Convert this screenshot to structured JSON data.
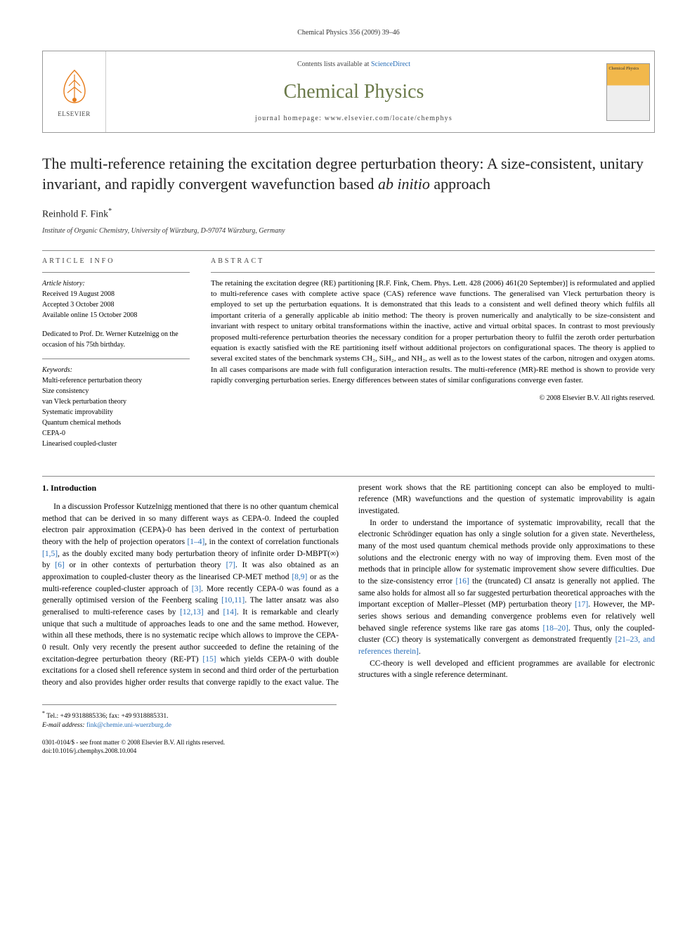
{
  "running_head": "Chemical Physics 356 (2009) 39–46",
  "masthead": {
    "contents_prefix": "Contents lists available at ",
    "contents_link": "ScienceDirect",
    "journal_name": "Chemical Physics",
    "homepage_prefix": "journal homepage: ",
    "homepage_url": "www.elsevier.com/locate/chemphys",
    "publisher_name": "ELSEVIER",
    "cover_text": "Chemical Physics"
  },
  "title_html": "The multi-reference retaining the excitation degree perturbation theory: A size-consistent, unitary invariant, and rapidly convergent wavefunction based <em>ab initio</em> approach",
  "author": "Reinhold F. Fink",
  "author_note_marker": "*",
  "affiliation": "Institute of Organic Chemistry, University of Würzburg, D-97074 Würzburg, Germany",
  "article_info": {
    "label": "ARTICLE INFO",
    "history_label": "Article history:",
    "received": "Received 19 August 2008",
    "accepted": "Accepted 3 October 2008",
    "online": "Available online 15 October 2008",
    "dedication": "Dedicated to Prof. Dr. Werner Kutzelnigg on the occasion of his 75th birthday.",
    "keywords_label": "Keywords:",
    "keywords": [
      "Multi-reference perturbation theory",
      "Size consistency",
      "van Vleck perturbation theory",
      "Systematic improvability",
      "Quantum chemical methods",
      "CEPA-0",
      "Linearised coupled-cluster"
    ]
  },
  "abstract": {
    "label": "ABSTRACT",
    "text": "The retaining the excitation degree (RE) partitioning [R.F. Fink, Chem. Phys. Lett. 428 (2006) 461(20 September)] is reformulated and applied to multi-reference cases with complete active space (CAS) reference wave functions. The generalised van Vleck perturbation theory is employed to set up the perturbation equations. It is demonstrated that this leads to a consistent and well defined theory which fulfils all important criteria of a generally applicable ab initio method: The theory is proven numerically and analytically to be size-consistent and invariant with respect to unitary orbital transformations within the inactive, active and virtual orbital spaces. In contrast to most previously proposed multi-reference perturbation theories the necessary condition for a proper perturbation theory to fulfil the zeroth order perturbation equation is exactly satisfied with the RE partitioning itself without additional projectors on configurational spaces. The theory is applied to several excited states of the benchmark systems CH₂, SiH₂, and NH₂, as well as to the lowest states of the carbon, nitrogen and oxygen atoms. In all cases comparisons are made with full configuration interaction results. The multi-reference (MR)-RE method is shown to provide very rapidly converging perturbation series. Energy differences between states of similar configurations converge even faster.",
    "copyright": "© 2008 Elsevier B.V. All rights reserved."
  },
  "section1": {
    "heading": "1. Introduction",
    "p1_html": "In a discussion Professor Kutzelnigg mentioned that there is no other quantum chemical method that can be derived in so many different ways as CEPA-0. Indeed the coupled electron pair approximation (CEPA)-0 has been derived in the context of perturbation theory with the help of projection operators <span class=\"ref\">[1–4]</span>, in the context of correlation functionals <span class=\"ref\">[1,5]</span>, as the doubly excited many body perturbation theory of infinite order D-MBPT(∞) by <span class=\"ref\">[6]</span> or in other contexts of perturbation theory <span class=\"ref\">[7]</span>. It was also obtained as an approximation to coupled-cluster theory as the linearised CP-MET method <span class=\"ref\">[8,9]</span> or as the multi-reference coupled-cluster approach of <span class=\"ref\">[3]</span>. More recently CEPA-0 was found as a generally optimised version of the Feenberg scaling <span class=\"ref\">[10,11]</span>. The latter ansatz was also generalised to multi-reference cases by <span class=\"ref\">[12,13]</span> and <span class=\"ref\">[14]</span>. It is remarkable and clearly unique that such a multitude of approaches leads to one and the same method. However, within all these methods, there is no systematic recipe which allows to improve the CEPA-0 result. Only very recently the present author succeeded to define the retaining of the excitation-degree perturbation theory (RE-PT) <span class=\"ref\">[15]</span> which yields CEPA-0 with double excitations for a closed shell reference system in second and third order of the perturbation theory and also provides higher order results that converge rapidly to the exact value. The present work shows that the RE partitioning concept can also be employed to multi-reference (MR) wavefunctions and the question of systematic improvability is again investigated.",
    "p2_html": "In order to understand the importance of systematic improvability, recall that the electronic Schrödinger equation has only a single solution for a given state. Nevertheless, many of the most used quantum chemical methods provide only approximations to these solutions and the electronic energy with no way of improving them. Even most of the methods that in principle allow for systematic improvement show severe difficulties. Due to the size-consistency error <span class=\"ref\">[16]</span> the (truncated) CI ansatz is generally not applied. The same also holds for almost all so far suggested perturbation theoretical approaches with the important exception of Møller–Plesset (MP) perturbation theory <span class=\"ref\">[17]</span>. However, the MP-series shows serious and demanding convergence problems even for relatively well behaved single reference systems like rare gas atoms <span class=\"ref\">[18–20]</span>. Thus, only the coupled-cluster (CC) theory is systematically convergent as demonstrated frequently <span class=\"ref\">[21–23, and references therein]</span>.",
    "p3": "CC-theory is well developed and efficient programmes are available for electronic structures with a single reference determinant."
  },
  "footnote": {
    "marker": "*",
    "tel": "Tel.: +49 9318885336; fax: +49 9318885331.",
    "email_label": "E-mail address:",
    "email": "fink@chemie.uni-wuerzburg.de"
  },
  "doi": {
    "line1": "0301-0104/$ - see front matter © 2008 Elsevier B.V. All rights reserved.",
    "line2": "doi:10.1016/j.chemphys.2008.10.004"
  }
}
